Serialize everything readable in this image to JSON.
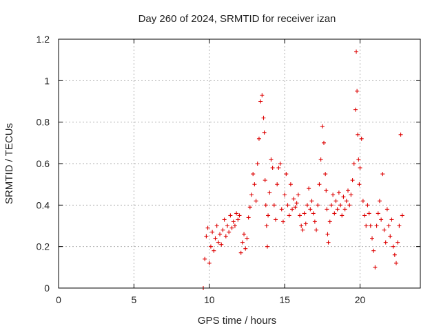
{
  "chart_data": {
    "type": "scatter",
    "title": "Day 260 of 2024, SRMTID for receiver izan",
    "xlabel": "GPS time / hours",
    "ylabel": "SRMTID / TECUs",
    "xlim": [
      0,
      24
    ],
    "ylim": [
      0,
      1.2
    ],
    "xticks": [
      0,
      5,
      10,
      15,
      20
    ],
    "xtick_labels": [
      "0",
      "5",
      "10",
      "15",
      "20"
    ],
    "yticks": [
      0,
      0.2,
      0.4,
      0.6,
      0.8,
      1.0,
      1.2
    ],
    "ytick_labels": [
      "0",
      "0.2",
      "0.4",
      "0.6",
      "0.8",
      "1",
      "1.2"
    ],
    "grid": true,
    "marker": "+",
    "color": "#dd0000",
    "series": [
      {
        "name": "SRMTID",
        "x": [
          9.6,
          9.7,
          9.8,
          9.9,
          10.0,
          10.1,
          10.2,
          10.3,
          10.4,
          10.5,
          10.6,
          10.7,
          10.8,
          10.9,
          11.0,
          11.1,
          11.2,
          11.3,
          11.4,
          11.5,
          11.6,
          11.7,
          11.8,
          11.9,
          12.0,
          12.1,
          12.2,
          12.3,
          12.4,
          12.5,
          12.6,
          12.7,
          12.8,
          12.9,
          13.0,
          13.1,
          13.2,
          13.3,
          13.4,
          13.5,
          13.6,
          13.65,
          13.7,
          13.75,
          13.8,
          13.85,
          13.9,
          14.0,
          14.1,
          14.2,
          14.3,
          14.4,
          14.5,
          14.6,
          14.7,
          14.8,
          14.9,
          15.0,
          15.1,
          15.2,
          15.3,
          15.4,
          15.5,
          15.6,
          15.7,
          15.8,
          15.9,
          16.0,
          16.1,
          16.2,
          16.3,
          16.4,
          16.5,
          16.6,
          16.7,
          16.8,
          16.9,
          17.0,
          17.1,
          17.2,
          17.3,
          17.4,
          17.5,
          17.6,
          17.7,
          17.75,
          17.8,
          17.85,
          17.9,
          18.0,
          18.1,
          18.2,
          18.3,
          18.4,
          18.5,
          18.6,
          18.7,
          18.8,
          18.9,
          19.0,
          19.1,
          19.2,
          19.3,
          19.4,
          19.5,
          19.6,
          19.7,
          19.75,
          19.8,
          19.85,
          19.9,
          19.95,
          20.0,
          20.1,
          20.2,
          20.3,
          20.4,
          20.5,
          20.6,
          20.7,
          20.8,
          20.9,
          21.0,
          21.1,
          21.2,
          21.3,
          21.4,
          21.5,
          21.6,
          21.7,
          21.8,
          21.9,
          22.0,
          22.1,
          22.2,
          22.3,
          22.4,
          22.5,
          22.6,
          22.7,
          22.8
        ],
        "y": [
          0.0,
          0.14,
          0.25,
          0.29,
          0.12,
          0.2,
          0.27,
          0.18,
          0.24,
          0.3,
          0.22,
          0.26,
          0.21,
          0.28,
          0.33,
          0.25,
          0.3,
          0.27,
          0.35,
          0.29,
          0.32,
          0.3,
          0.36,
          0.33,
          0.35,
          0.17,
          0.22,
          0.26,
          0.19,
          0.24,
          0.34,
          0.39,
          0.45,
          0.55,
          0.5,
          0.42,
          0.6,
          0.72,
          0.9,
          0.93,
          0.82,
          0.75,
          0.52,
          0.4,
          0.3,
          0.2,
          0.35,
          0.46,
          0.62,
          0.58,
          0.4,
          0.33,
          0.5,
          0.58,
          0.6,
          0.38,
          0.32,
          0.45,
          0.55,
          0.4,
          0.35,
          0.5,
          0.38,
          0.43,
          0.39,
          0.41,
          0.45,
          0.35,
          0.3,
          0.28,
          0.36,
          0.31,
          0.4,
          0.48,
          0.38,
          0.42,
          0.36,
          0.32,
          0.28,
          0.4,
          0.5,
          0.62,
          0.78,
          0.7,
          0.55,
          0.47,
          0.38,
          0.26,
          0.22,
          0.32,
          0.4,
          0.45,
          0.36,
          0.42,
          0.38,
          0.46,
          0.4,
          0.35,
          0.44,
          0.38,
          0.42,
          0.47,
          0.4,
          0.45,
          0.52,
          0.6,
          0.86,
          1.14,
          0.95,
          0.74,
          0.62,
          0.5,
          0.58,
          0.72,
          0.42,
          0.35,
          0.3,
          0.4,
          0.36,
          0.3,
          0.24,
          0.18,
          0.1,
          0.3,
          0.36,
          0.42,
          0.33,
          0.55,
          0.28,
          0.22,
          0.38,
          0.3,
          0.25,
          0.33,
          0.2,
          0.16,
          0.12,
          0.22,
          0.3,
          0.74,
          0.35
        ]
      }
    ]
  }
}
